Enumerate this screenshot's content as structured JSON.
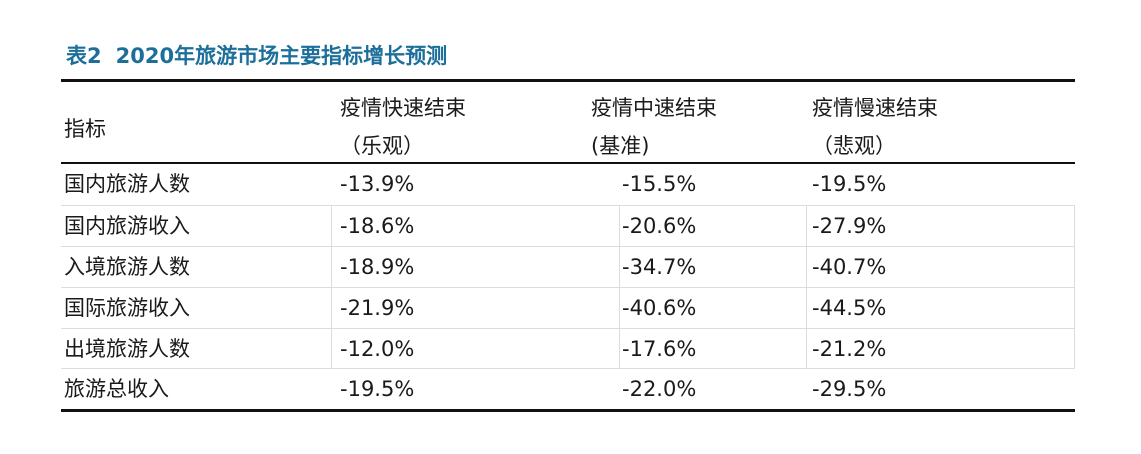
{
  "title": {
    "number": "表2",
    "text": "2020年旅游市场主要指标增长预测"
  },
  "header": {
    "indicator": "指标",
    "col1_line1": "疫情快速结束",
    "col1_line2": "（乐观）",
    "col2_line1": "疫情中速结束",
    "col2_line2": "(基准)",
    "col3_line1": "疫情慢速结束",
    "col3_line2": "（悲观）"
  },
  "rows": [
    {
      "label": "国内旅游人数",
      "v1": "-13.9%",
      "v2": "-15.5%",
      "v3": "-19.5%"
    },
    {
      "label": "国内旅游收入",
      "v1": "-18.6%",
      "v2": "-20.6%",
      "v3": "-27.9%"
    },
    {
      "label": "入境旅游人数",
      "v1": "-18.9%",
      "v2": "-34.7%",
      "v3": "-40.7%"
    },
    {
      "label": "国际旅游收入",
      "v1": "-21.9%",
      "v2": "-40.6%",
      "v3": "-44.5%"
    },
    {
      "label": "出境旅游人数",
      "v1": "-12.0%",
      "v2": "-17.6%",
      "v3": "-21.2%"
    },
    {
      "label": "旅游总收入",
      "v1": "-19.5%",
      "v2": "-22.0%",
      "v3": "-29.5%"
    }
  ],
  "chart_data": {
    "type": "table",
    "title": "2020年旅游市场主要指标增长预测",
    "columns": [
      "指标",
      "疫情快速结束（乐观）",
      "疫情中速结束(基准)",
      "疫情慢速结束（悲观）"
    ],
    "rows": [
      [
        "国内旅游人数",
        "-13.9%",
        "-15.5%",
        "-19.5%"
      ],
      [
        "国内旅游收入",
        "-18.6%",
        "-20.6%",
        "-27.9%"
      ],
      [
        "入境旅游人数",
        "-18.9%",
        "-34.7%",
        "-40.7%"
      ],
      [
        "国际旅游收入",
        "-21.9%",
        "-40.6%",
        "-44.5%"
      ],
      [
        "出境旅游人数",
        "-12.0%",
        "-17.6%",
        "-21.2%"
      ],
      [
        "旅游总收入",
        "-19.5%",
        "-22.0%",
        "-29.5%"
      ]
    ]
  }
}
